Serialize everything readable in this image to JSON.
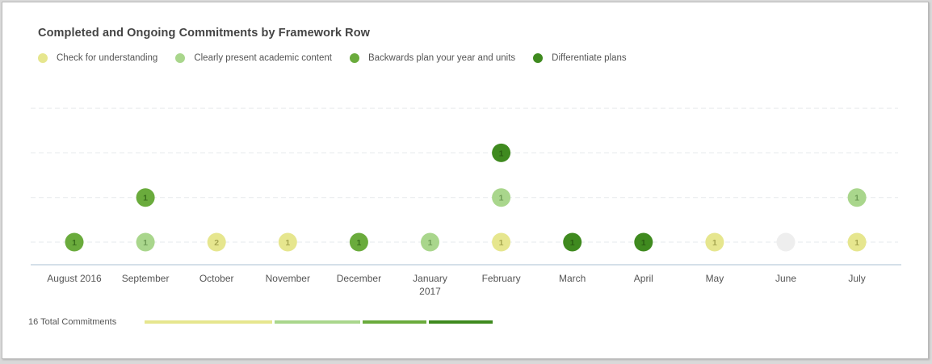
{
  "chart_data": {
    "type": "scatter",
    "title": "Completed and Ongoing Commitments by Framework Row",
    "legend_position": "top-left",
    "grid": true,
    "categories": [
      {
        "label": "August 2016",
        "sub": ""
      },
      {
        "label": "September",
        "sub": ""
      },
      {
        "label": "October",
        "sub": ""
      },
      {
        "label": "November",
        "sub": ""
      },
      {
        "label": "December",
        "sub": ""
      },
      {
        "label": "January",
        "sub": "2017"
      },
      {
        "label": "February",
        "sub": ""
      },
      {
        "label": "March",
        "sub": ""
      },
      {
        "label": "April",
        "sub": ""
      },
      {
        "label": "May",
        "sub": ""
      },
      {
        "label": "June",
        "sub": ""
      },
      {
        "label": "July",
        "sub": ""
      }
    ],
    "series": [
      {
        "name": "Check for understanding",
        "color": "#e6e68e"
      },
      {
        "name": "Clearly present academic content",
        "color": "#a9d68c"
      },
      {
        "name": "Backwards plan your year and units",
        "color": "#6aab3c"
      },
      {
        "name": "Differentiate plans",
        "color": "#3f8a1f"
      }
    ],
    "empty_color": "#eeeeee",
    "points": [
      {
        "month": 0,
        "series": 2,
        "level": 1,
        "count": "1"
      },
      {
        "month": 1,
        "series": 1,
        "level": 1,
        "count": "1"
      },
      {
        "month": 1,
        "series": 2,
        "level": 2,
        "count": "1"
      },
      {
        "month": 2,
        "series": 0,
        "level": 1,
        "count": "2"
      },
      {
        "month": 3,
        "series": 0,
        "level": 1,
        "count": "1"
      },
      {
        "month": 4,
        "series": 2,
        "level": 1,
        "count": "1"
      },
      {
        "month": 5,
        "series": 1,
        "level": 1,
        "count": "1"
      },
      {
        "month": 6,
        "series": 0,
        "level": 1,
        "count": "1"
      },
      {
        "month": 6,
        "series": 1,
        "level": 2,
        "count": "1"
      },
      {
        "month": 6,
        "series": 3,
        "level": 3,
        "count": "1"
      },
      {
        "month": 7,
        "series": 3,
        "level": 1,
        "count": "1"
      },
      {
        "month": 8,
        "series": 3,
        "level": 1,
        "count": "1"
      },
      {
        "month": 9,
        "series": 0,
        "level": 1,
        "count": "1"
      },
      {
        "month": 10,
        "series": -1,
        "level": 1,
        "count": ""
      },
      {
        "month": 11,
        "series": 0,
        "level": 1,
        "count": "1"
      },
      {
        "month": 11,
        "series": 1,
        "level": 2,
        "count": "1"
      }
    ],
    "total_label": "16 Total Commitments",
    "totals": [
      {
        "series": 0,
        "value": 6
      },
      {
        "series": 1,
        "value": 4
      },
      {
        "series": 2,
        "value": 3
      },
      {
        "series": 3,
        "value": 3
      }
    ]
  }
}
